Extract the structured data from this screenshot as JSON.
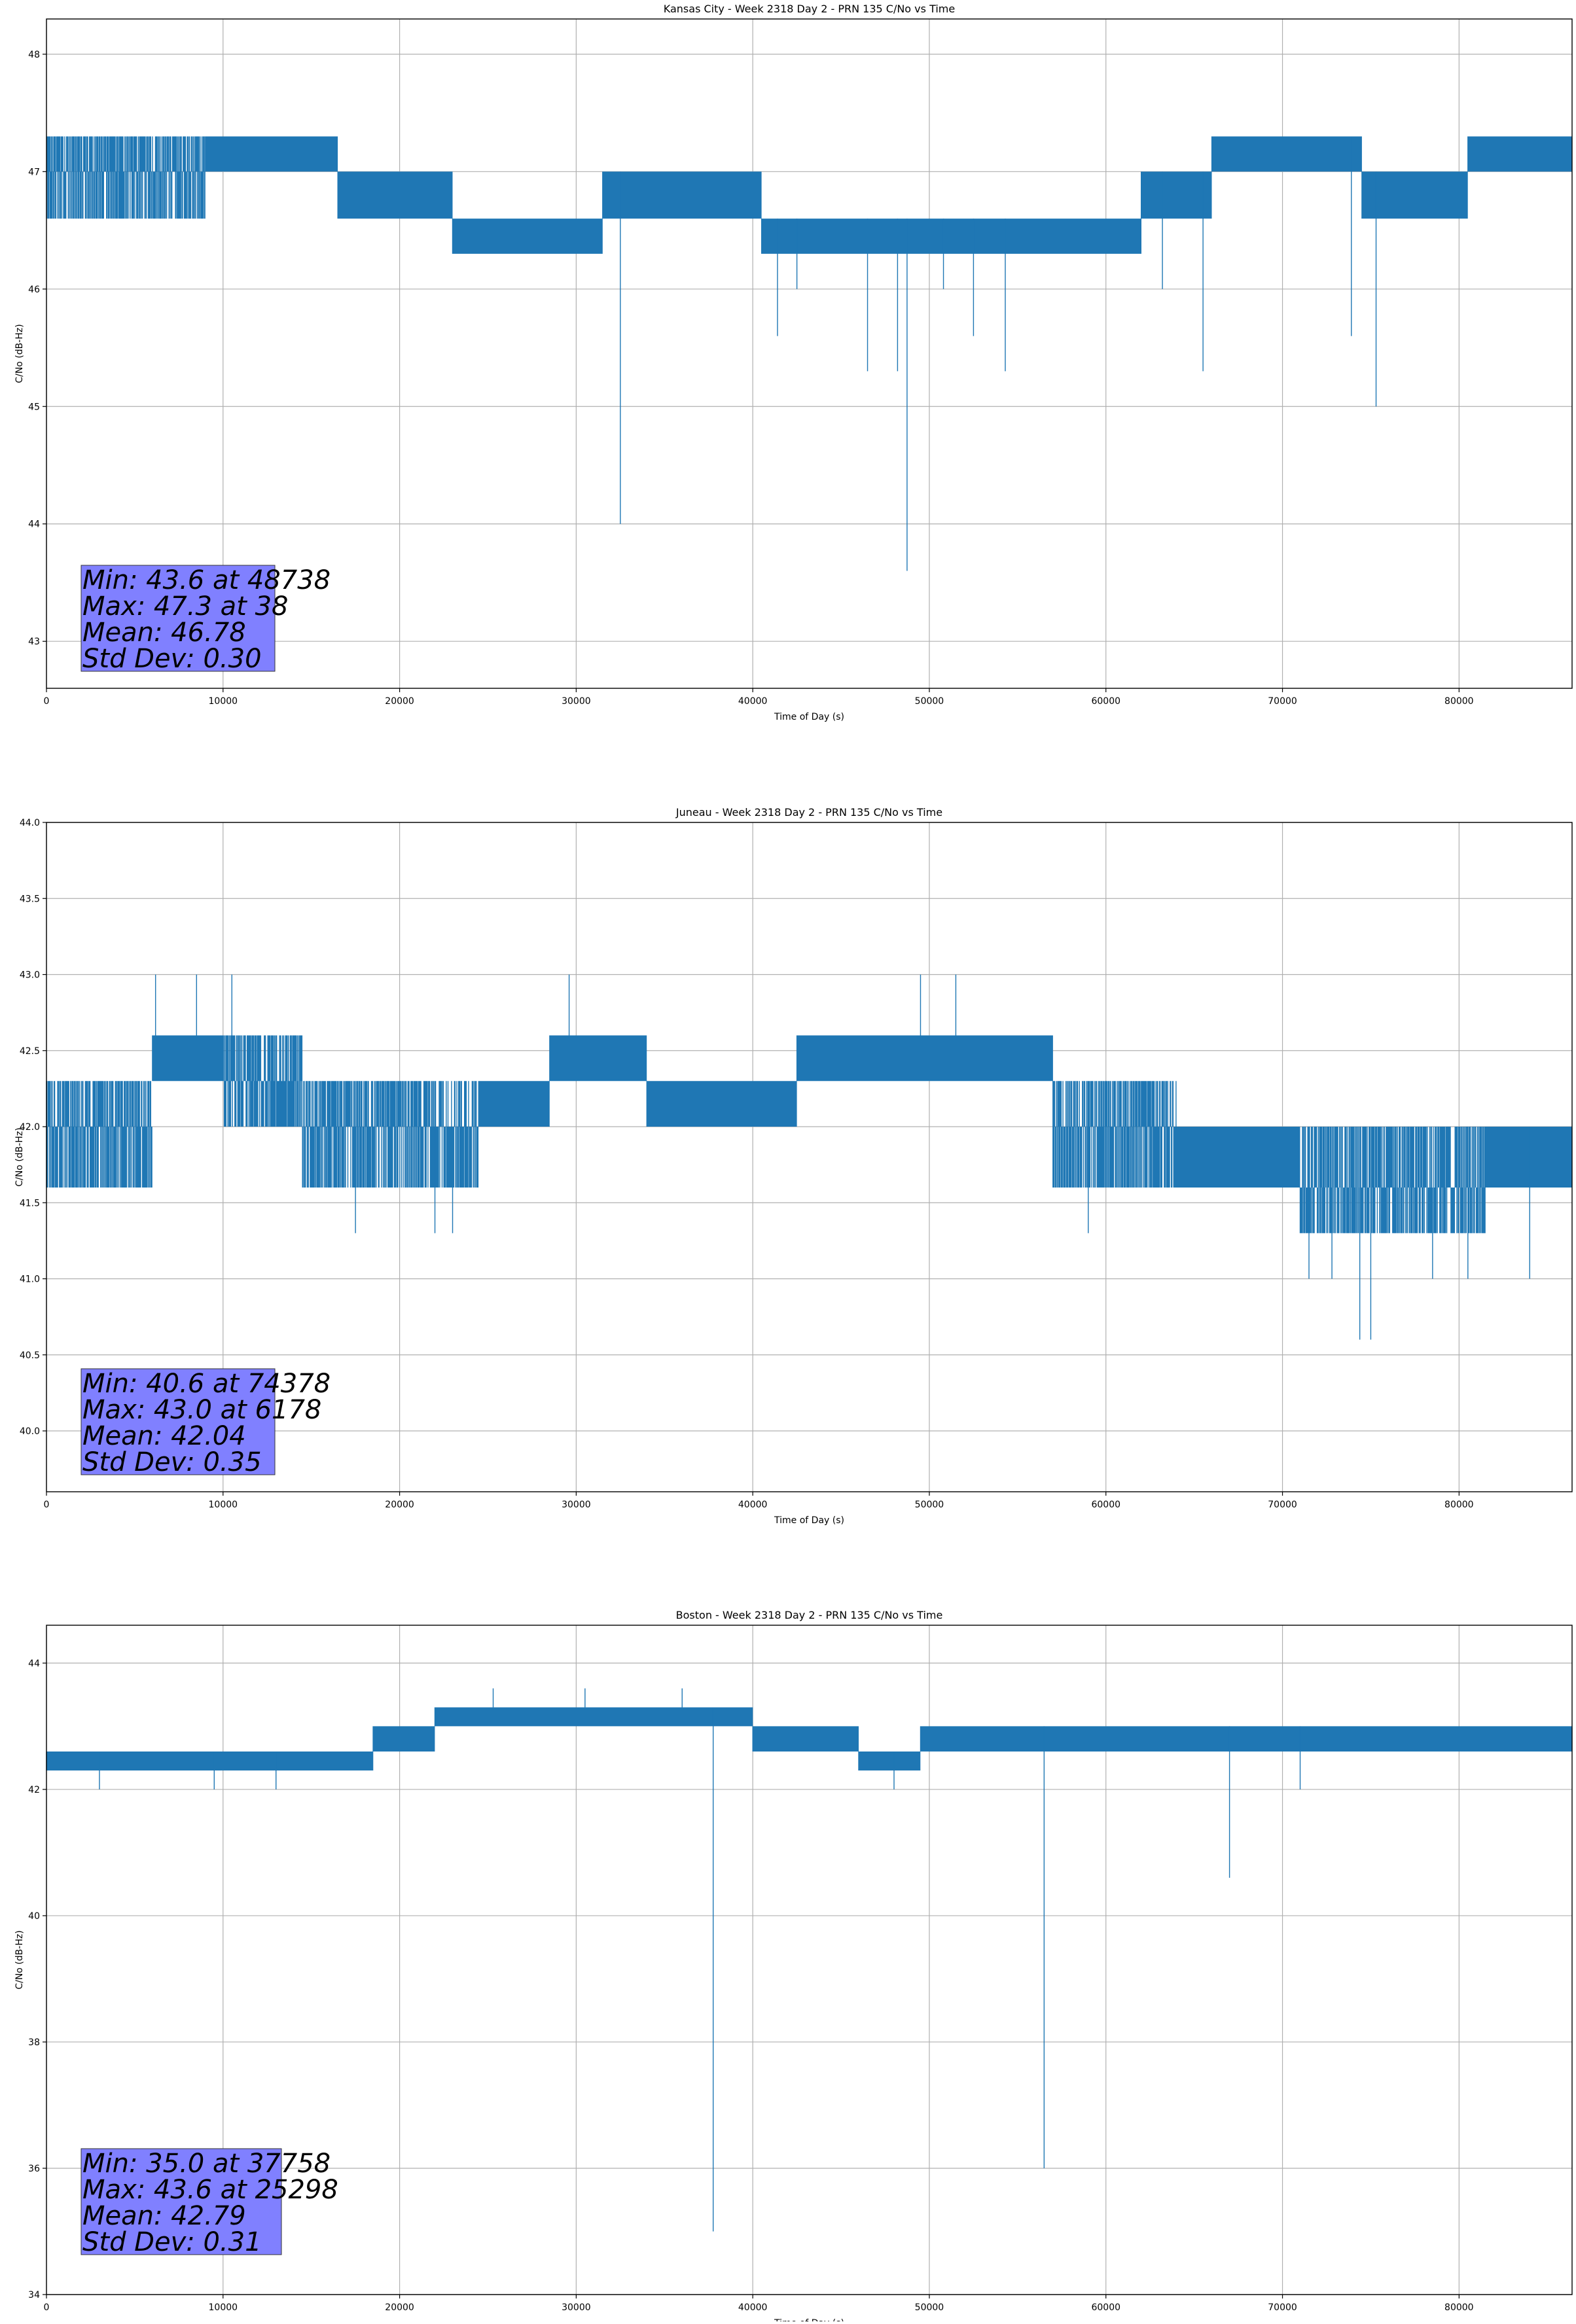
{
  "chart_data": [
    {
      "type": "line",
      "title": "Kansas City - Week 2318 Day 2 - PRN 135 C/No vs Time",
      "xlabel": "Time of Day (s)",
      "ylabel": "C/No (dB-Hz)",
      "xlim": [
        0,
        86400
      ],
      "ylim": [
        42.6,
        48.3
      ],
      "xticks": [
        0,
        10000,
        20000,
        30000,
        40000,
        50000,
        60000,
        70000,
        80000
      ],
      "yticks": [
        43,
        44,
        45,
        46,
        47,
        48
      ],
      "ytick_decimals": 0,
      "grid": true,
      "color": "#1f77b4",
      "band_segments": [
        {
          "x": [
            0,
            9000
          ],
          "levels": [
            46.6,
            47.0,
            47.3
          ]
        },
        {
          "x": [
            9000,
            16500
          ],
          "levels": [
            47.0,
            47.3
          ]
        },
        {
          "x": [
            16500,
            23000
          ],
          "levels": [
            46.6,
            47.0
          ]
        },
        {
          "x": [
            23000,
            31500
          ],
          "levels": [
            46.3,
            46.6
          ]
        },
        {
          "x": [
            31500,
            40500
          ],
          "levels": [
            46.6,
            47.0
          ]
        },
        {
          "x": [
            40500,
            62000
          ],
          "levels": [
            46.3,
            46.6
          ]
        },
        {
          "x": [
            62000,
            66000
          ],
          "levels": [
            46.6,
            47.0
          ]
        },
        {
          "x": [
            66000,
            74500
          ],
          "levels": [
            47.0,
            47.3
          ]
        },
        {
          "x": [
            74500,
            80500
          ],
          "levels": [
            46.6,
            47.0
          ]
        },
        {
          "x": [
            80500,
            86400
          ],
          "levels": [
            47.0,
            47.3
          ]
        }
      ],
      "spikes": [
        {
          "x": 32500,
          "y": 44.0
        },
        {
          "x": 48738,
          "y": 43.6
        },
        {
          "x": 41400,
          "y": 45.6
        },
        {
          "x": 46500,
          "y": 45.3
        },
        {
          "x": 48200,
          "y": 45.3
        },
        {
          "x": 52500,
          "y": 45.6
        },
        {
          "x": 54300,
          "y": 45.3
        },
        {
          "x": 65500,
          "y": 45.3
        },
        {
          "x": 73900,
          "y": 45.6
        },
        {
          "x": 75300,
          "y": 45.0
        },
        {
          "x": 42500,
          "y": 46.0
        },
        {
          "x": 50800,
          "y": 46.0
        },
        {
          "x": 63200,
          "y": 46.0
        }
      ],
      "stats": {
        "min": "Min: 43.6 at 48738",
        "max": "Max: 47.3 at 38",
        "mean": "Mean: 46.78",
        "std": "Std Dev: 0.30"
      }
    },
    {
      "type": "line",
      "title": "Juneau - Week 2318 Day 2 - PRN 135 C/No vs Time",
      "xlabel": "Time of Day (s)",
      "ylabel": "C/No (dB-Hz)",
      "xlim": [
        0,
        86400
      ],
      "ylim": [
        39.6,
        44.0
      ],
      "xticks": [
        0,
        10000,
        20000,
        30000,
        40000,
        50000,
        60000,
        70000,
        80000
      ],
      "yticks": [
        40.0,
        40.5,
        41.0,
        41.5,
        42.0,
        42.5,
        43.0,
        43.5,
        44.0
      ],
      "ytick_decimals": 1,
      "grid": true,
      "color": "#1f77b4",
      "band_segments": [
        {
          "x": [
            0,
            6000
          ],
          "levels": [
            41.6,
            42.0,
            42.3
          ]
        },
        {
          "x": [
            6000,
            10000
          ],
          "levels": [
            42.3,
            42.6
          ]
        },
        {
          "x": [
            10000,
            14500
          ],
          "levels": [
            42.0,
            42.3,
            42.6
          ]
        },
        {
          "x": [
            14500,
            24500
          ],
          "levels": [
            41.6,
            42.0,
            42.3
          ]
        },
        {
          "x": [
            24500,
            28500
          ],
          "levels": [
            42.0,
            42.3
          ]
        },
        {
          "x": [
            28500,
            34000
          ],
          "levels": [
            42.3,
            42.6
          ]
        },
        {
          "x": [
            34000,
            42500
          ],
          "levels": [
            42.0,
            42.3
          ]
        },
        {
          "x": [
            42500,
            57000
          ],
          "levels": [
            42.3,
            42.6
          ]
        },
        {
          "x": [
            57000,
            64000
          ],
          "levels": [
            41.6,
            42.0,
            42.3
          ]
        },
        {
          "x": [
            64000,
            71000
          ],
          "levels": [
            41.6,
            42.0
          ]
        },
        {
          "x": [
            71000,
            81500
          ],
          "levels": [
            41.3,
            41.6,
            42.0
          ]
        },
        {
          "x": [
            81500,
            86400
          ],
          "levels": [
            41.6,
            42.0
          ]
        }
      ],
      "spikes": [
        {
          "x": 6178,
          "y": 43.0
        },
        {
          "x": 8500,
          "y": 43.0
        },
        {
          "x": 10500,
          "y": 43.0
        },
        {
          "x": 29600,
          "y": 43.0
        },
        {
          "x": 49500,
          "y": 43.0
        },
        {
          "x": 51500,
          "y": 43.0
        },
        {
          "x": 17500,
          "y": 41.3
        },
        {
          "x": 22000,
          "y": 41.3
        },
        {
          "x": 23000,
          "y": 41.3
        },
        {
          "x": 59000,
          "y": 41.3
        },
        {
          "x": 71500,
          "y": 41.0
        },
        {
          "x": 74378,
          "y": 40.6
        },
        {
          "x": 75000,
          "y": 40.6
        },
        {
          "x": 72800,
          "y": 41.0
        },
        {
          "x": 78500,
          "y": 41.0
        },
        {
          "x": 80500,
          "y": 41.0
        },
        {
          "x": 84000,
          "y": 41.0
        }
      ],
      "stats": {
        "min": "Min: 40.6 at 74378",
        "max": "Max: 43.0 at 6178",
        "mean": "Mean: 42.04",
        "std": "Std Dev: 0.35"
      }
    },
    {
      "type": "line",
      "title": "Boston - Week 2318 Day 2 - PRN 135 C/No vs Time",
      "xlabel": "Time of Day (s)",
      "ylabel": "C/No (dB-Hz)",
      "xlim": [
        0,
        86400
      ],
      "ylim": [
        34.0,
        44.6
      ],
      "xticks": [
        0,
        10000,
        20000,
        30000,
        40000,
        50000,
        60000,
        70000,
        80000
      ],
      "yticks": [
        34,
        36,
        38,
        40,
        42,
        44
      ],
      "ytick_decimals": 0,
      "grid": true,
      "color": "#1f77b4",
      "band_segments": [
        {
          "x": [
            0,
            18500
          ],
          "levels": [
            42.3,
            42.6
          ]
        },
        {
          "x": [
            18500,
            22000
          ],
          "levels": [
            42.6,
            43.0
          ]
        },
        {
          "x": [
            22000,
            40000
          ],
          "levels": [
            43.0,
            43.3
          ]
        },
        {
          "x": [
            40000,
            46000
          ],
          "levels": [
            42.6,
            43.0
          ]
        },
        {
          "x": [
            46000,
            49500
          ],
          "levels": [
            42.3,
            42.6
          ]
        },
        {
          "x": [
            49500,
            86400
          ],
          "levels": [
            42.6,
            43.0
          ]
        }
      ],
      "spikes": [
        {
          "x": 37758,
          "y": 35.0
        },
        {
          "x": 56500,
          "y": 36.0
        },
        {
          "x": 67000,
          "y": 40.6
        },
        {
          "x": 25298,
          "y": 43.6
        },
        {
          "x": 30500,
          "y": 43.6
        },
        {
          "x": 36000,
          "y": 43.6
        },
        {
          "x": 3000,
          "y": 42.0
        },
        {
          "x": 9500,
          "y": 42.0
        },
        {
          "x": 13000,
          "y": 42.0
        },
        {
          "x": 48000,
          "y": 42.0
        },
        {
          "x": 71000,
          "y": 42.0
        }
      ],
      "stats": {
        "min": "Min: 35.0 at 37758",
        "max": "Max: 43.6 at 25298",
        "mean": "Mean: 42.79",
        "std": "Std Dev: 0.31"
      }
    }
  ]
}
